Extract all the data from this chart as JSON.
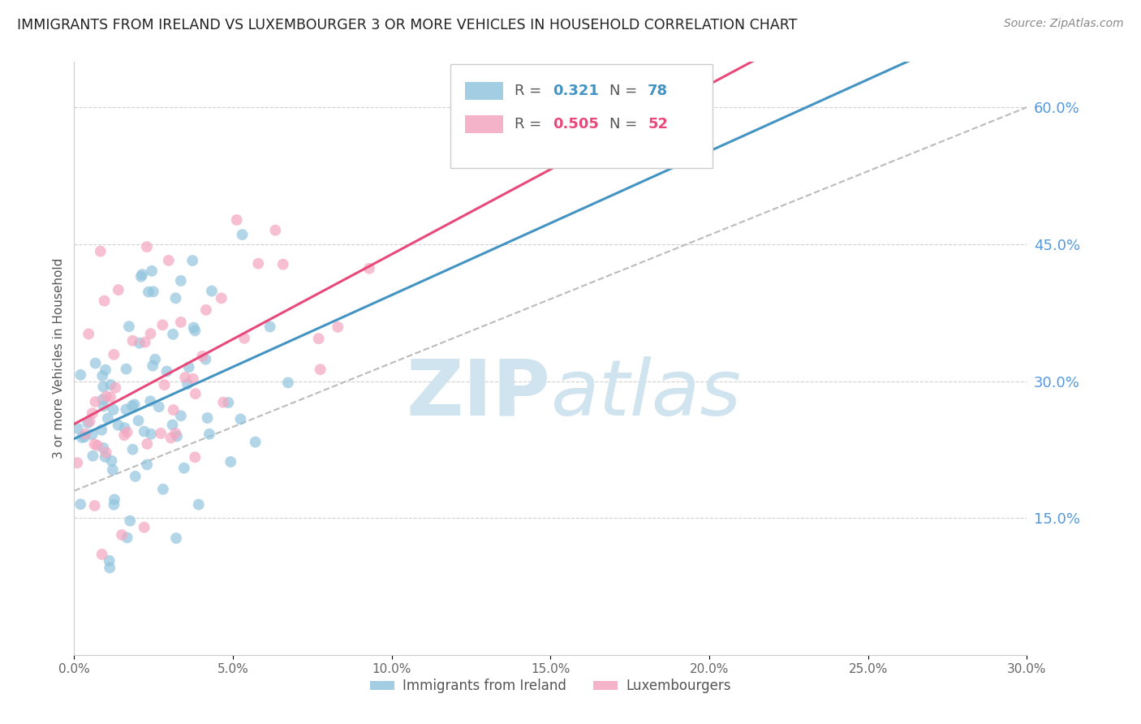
{
  "title": "IMMIGRANTS FROM IRELAND VS LUXEMBOURGER 3 OR MORE VEHICLES IN HOUSEHOLD CORRELATION CHART",
  "source": "Source: ZipAtlas.com",
  "ylabel": "3 or more Vehicles in Household",
  "right_yticks": [
    "60.0%",
    "45.0%",
    "30.0%",
    "15.0%"
  ],
  "right_ytick_vals": [
    0.6,
    0.45,
    0.3,
    0.15
  ],
  "blue_color": "#92c5de",
  "pink_color": "#f4a6c0",
  "blue_line_color": "#4393c3",
  "pink_line_color": "#e8497a",
  "dashed_line_color": "#bbbbbb",
  "watermark_color": "#d0e4f0",
  "right_axis_color": "#5599dd",
  "xmin": 0.0,
  "xmax": 0.3,
  "ymin": 0.0,
  "ymax": 0.65,
  "ireland_R": 0.321,
  "ireland_N": 78,
  "lux_R": 0.505,
  "lux_N": 52,
  "bottom_legend_labels": [
    "Immigrants from Ireland",
    "Luxembourgers"
  ]
}
